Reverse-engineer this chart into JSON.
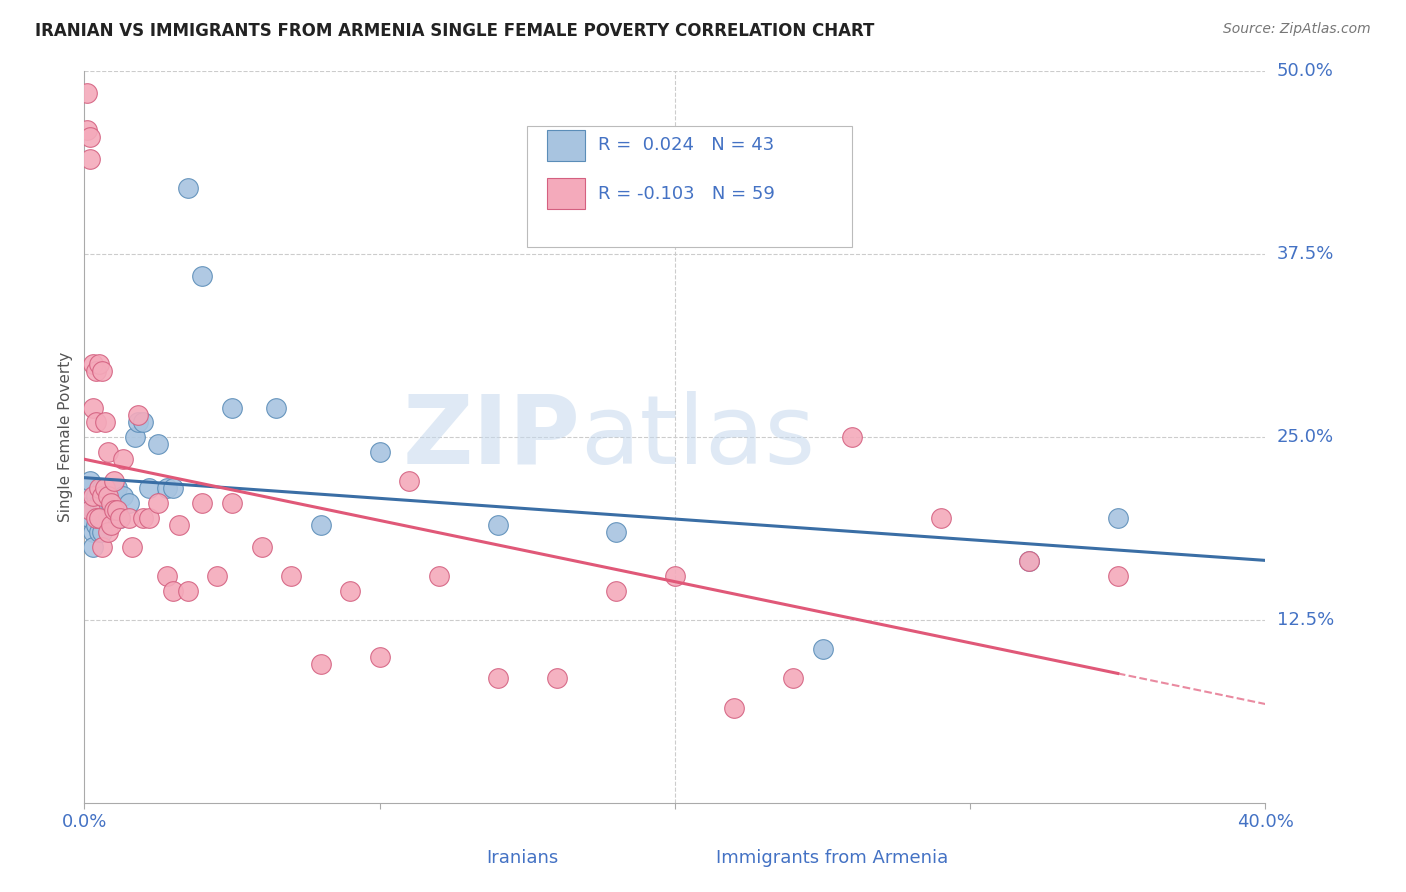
{
  "title": "IRANIAN VS IMMIGRANTS FROM ARMENIA SINGLE FEMALE POVERTY CORRELATION CHART",
  "source": "Source: ZipAtlas.com",
  "ylabel": "Single Female Poverty",
  "xlim": [
    0.0,
    0.4
  ],
  "ylim": [
    0.0,
    0.5
  ],
  "blue_color": "#A8C4E0",
  "pink_color": "#F4AABB",
  "blue_edge_color": "#5B8DB8",
  "pink_edge_color": "#D46080",
  "blue_line_color": "#3A6EA5",
  "pink_line_color": "#E05878",
  "R_blue": 0.024,
  "N_blue": 43,
  "R_pink": -0.103,
  "N_pink": 59,
  "blue_x": [
    0.001,
    0.001,
    0.002,
    0.002,
    0.002,
    0.003,
    0.003,
    0.003,
    0.004,
    0.004,
    0.005,
    0.005,
    0.006,
    0.006,
    0.006,
    0.007,
    0.007,
    0.008,
    0.008,
    0.009,
    0.01,
    0.011,
    0.012,
    0.013,
    0.015,
    0.017,
    0.018,
    0.02,
    0.022,
    0.025,
    0.028,
    0.03,
    0.035,
    0.04,
    0.05,
    0.065,
    0.08,
    0.1,
    0.14,
    0.18,
    0.25,
    0.32,
    0.35
  ],
  "blue_y": [
    0.205,
    0.215,
    0.22,
    0.2,
    0.195,
    0.2,
    0.185,
    0.175,
    0.21,
    0.19,
    0.205,
    0.185,
    0.215,
    0.2,
    0.185,
    0.21,
    0.195,
    0.21,
    0.195,
    0.2,
    0.215,
    0.215,
    0.195,
    0.21,
    0.205,
    0.25,
    0.26,
    0.26,
    0.215,
    0.245,
    0.215,
    0.215,
    0.42,
    0.36,
    0.27,
    0.27,
    0.19,
    0.24,
    0.19,
    0.185,
    0.105,
    0.165,
    0.195
  ],
  "pink_x": [
    0.001,
    0.001,
    0.002,
    0.002,
    0.002,
    0.003,
    0.003,
    0.003,
    0.004,
    0.004,
    0.004,
    0.005,
    0.005,
    0.005,
    0.006,
    0.006,
    0.006,
    0.007,
    0.007,
    0.008,
    0.008,
    0.008,
    0.009,
    0.009,
    0.01,
    0.01,
    0.011,
    0.012,
    0.013,
    0.015,
    0.016,
    0.018,
    0.02,
    0.022,
    0.025,
    0.028,
    0.03,
    0.032,
    0.035,
    0.04,
    0.045,
    0.05,
    0.06,
    0.07,
    0.08,
    0.09,
    0.1,
    0.11,
    0.12,
    0.14,
    0.16,
    0.18,
    0.2,
    0.22,
    0.24,
    0.26,
    0.29,
    0.32,
    0.35
  ],
  "pink_y": [
    0.485,
    0.46,
    0.455,
    0.44,
    0.2,
    0.27,
    0.3,
    0.21,
    0.295,
    0.26,
    0.195,
    0.215,
    0.3,
    0.195,
    0.21,
    0.295,
    0.175,
    0.215,
    0.26,
    0.24,
    0.21,
    0.185,
    0.205,
    0.19,
    0.22,
    0.2,
    0.2,
    0.195,
    0.235,
    0.195,
    0.175,
    0.265,
    0.195,
    0.195,
    0.205,
    0.155,
    0.145,
    0.19,
    0.145,
    0.205,
    0.155,
    0.205,
    0.175,
    0.155,
    0.095,
    0.145,
    0.1,
    0.22,
    0.155,
    0.085,
    0.085,
    0.145,
    0.155,
    0.065,
    0.085,
    0.25,
    0.195,
    0.165,
    0.155
  ],
  "background_color": "#FFFFFF",
  "grid_color": "#CCCCCC",
  "title_fontsize": 12,
  "tick_label_color": "#4472C4",
  "ylabel_color": "#555555",
  "source_color": "#777777"
}
